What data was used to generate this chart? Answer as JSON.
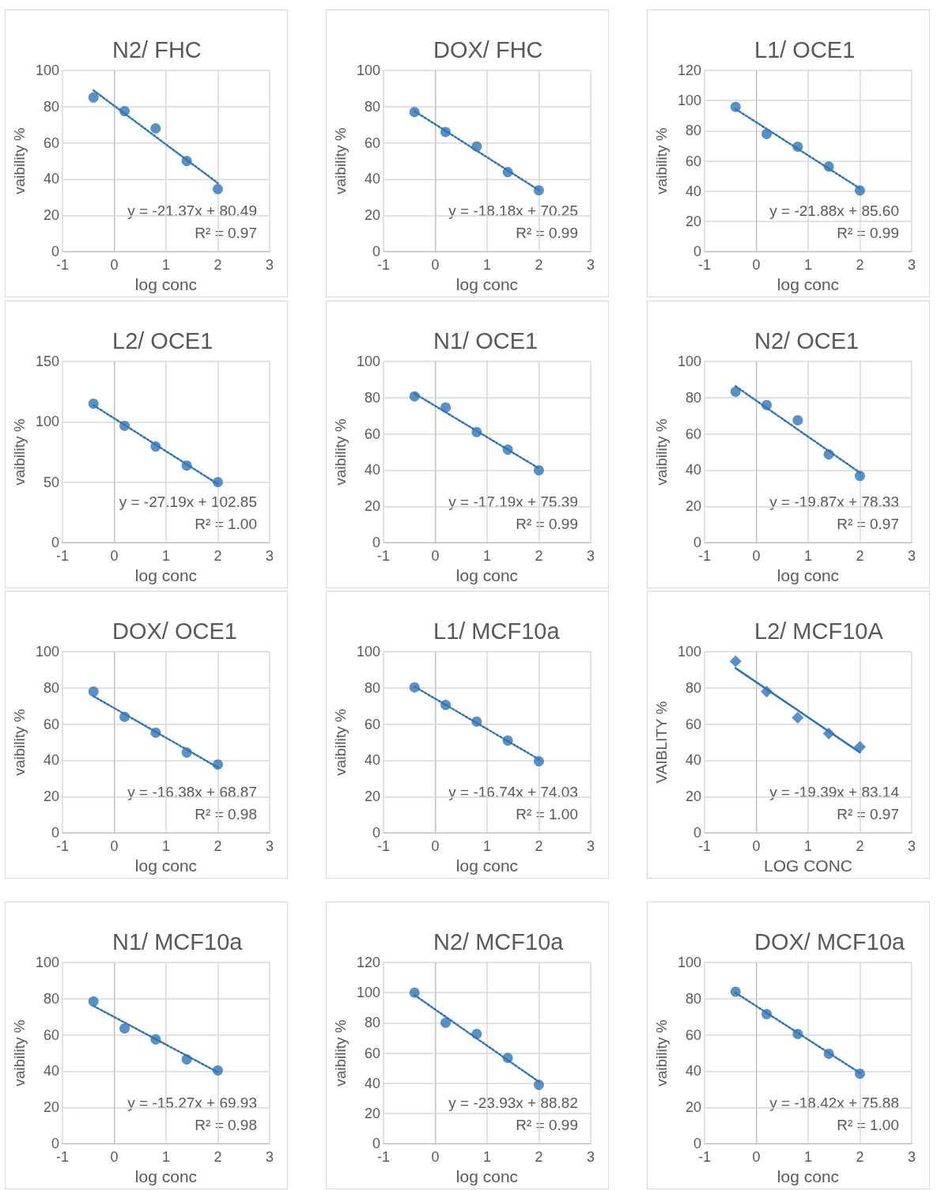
{
  "chart_data": [
    {
      "type": "scatter",
      "title": "N2/ FHC",
      "xlabel": "log conc",
      "ylabel": "vaibility %",
      "xlim": [
        -1,
        3
      ],
      "xticks": [
        -1,
        0,
        1,
        2,
        3
      ],
      "ylim": [
        0,
        100
      ],
      "yticks": [
        0,
        20,
        40,
        60,
        80,
        100
      ],
      "grid": true,
      "annotations": [
        "y = -21.37x + 80.49",
        "R² = 0.97"
      ],
      "series": [
        {
          "marker": "circle",
          "color": "#2e75b6",
          "x": [
            -0.4,
            0.2,
            0.8,
            1.4,
            2
          ],
          "values": [
            85,
            77.5,
            68,
            50,
            34.5
          ]
        },
        {
          "type": "line",
          "marker": "none",
          "color": "#2e75b6",
          "line_style": "dotted",
          "x": [
            -0.4,
            2
          ],
          "values": [
            89,
            37.8
          ]
        }
      ]
    },
    {
      "type": "scatter",
      "title": "DOX/ FHC",
      "xlabel": "log conc",
      "ylabel": "vaibility %",
      "xlim": [
        -1,
        3
      ],
      "xticks": [
        -1,
        0,
        1,
        2,
        3
      ],
      "ylim": [
        0,
        100
      ],
      "yticks": [
        0,
        20,
        40,
        60,
        80,
        100
      ],
      "grid": true,
      "annotations": [
        "y = -18.18x + 70.25",
        "R² = 0.99"
      ],
      "series": [
        {
          "marker": "circle",
          "color": "#2e75b6",
          "x": [
            -0.4,
            0.2,
            0.8,
            1.4,
            2
          ],
          "values": [
            77,
            66,
            58,
            43.9,
            33.8
          ]
        },
        {
          "type": "line",
          "marker": "none",
          "color": "#2e75b6",
          "line_style": "dotted",
          "x": [
            -0.4,
            2
          ],
          "values": [
            77.5,
            33.9
          ]
        }
      ]
    },
    {
      "type": "scatter",
      "title": "L1/ OCE1",
      "xlabel": "log conc",
      "ylabel": "vaibility %",
      "xlim": [
        -1,
        3
      ],
      "xticks": [
        -1,
        0,
        1,
        2,
        3
      ],
      "ylim": [
        0,
        120
      ],
      "yticks": [
        0,
        20,
        40,
        60,
        80,
        100,
        120
      ],
      "grid": true,
      "annotations": [
        "y = -21.88x + 85.60",
        "R² = 0.99"
      ],
      "series": [
        {
          "marker": "circle",
          "color": "#2e75b6",
          "x": [
            -0.4,
            0.2,
            0.8,
            1.4,
            2
          ],
          "values": [
            95.8,
            77.9,
            69.5,
            56.3,
            40.5
          ]
        },
        {
          "type": "line",
          "marker": "none",
          "color": "#2e75b6",
          "line_style": "dotted",
          "x": [
            -0.4,
            2
          ],
          "values": [
            94.4,
            41.8
          ]
        }
      ]
    },
    {
      "type": "scatter",
      "title": "L2/ OCE1",
      "xlabel": "log conc",
      "ylabel": "vaibility %",
      "xlim": [
        -1,
        3
      ],
      "xticks": [
        -1,
        0,
        1,
        2,
        3
      ],
      "ylim": [
        0,
        150
      ],
      "yticks": [
        0,
        50,
        100,
        150
      ],
      "grid": true,
      "annotations": [
        "y = -27.19x + 102.85",
        "R² = 1.00"
      ],
      "series": [
        {
          "marker": "circle",
          "color": "#2e75b6",
          "x": [
            -0.4,
            0.2,
            0.8,
            1.4,
            2
          ],
          "values": [
            115,
            96.7,
            79.6,
            63.8,
            50
          ]
        },
        {
          "type": "line",
          "marker": "none",
          "color": "#2e75b6",
          "line_style": "dotted",
          "x": [
            -0.4,
            2
          ],
          "values": [
            113.7,
            48.5
          ]
        }
      ]
    },
    {
      "type": "scatter",
      "title": "N1/ OCE1",
      "xlabel": "log conc",
      "ylabel": "vaibility %",
      "xlim": [
        -1,
        3
      ],
      "xticks": [
        -1,
        0,
        1,
        2,
        3
      ],
      "ylim": [
        0,
        100
      ],
      "yticks": [
        0,
        20,
        40,
        60,
        80,
        100
      ],
      "grid": true,
      "annotations": [
        "y = -17.19x + 75.39",
        "R² = 0.99"
      ],
      "series": [
        {
          "marker": "circle",
          "color": "#2e75b6",
          "x": [
            -0.4,
            0.2,
            0.8,
            1.4,
            2
          ],
          "values": [
            80.7,
            74.6,
            61,
            51.3,
            39.9
          ]
        },
        {
          "type": "line",
          "marker": "none",
          "color": "#2e75b6",
          "line_style": "dotted",
          "x": [
            -0.4,
            2
          ],
          "values": [
            82.3,
            41
          ]
        }
      ]
    },
    {
      "type": "scatter",
      "title": "N2/ OCE1",
      "xlabel": "log conc",
      "ylabel": "vaibility %",
      "xlim": [
        -1,
        3
      ],
      "xticks": [
        -1,
        0,
        1,
        2,
        3
      ],
      "ylim": [
        0,
        100
      ],
      "yticks": [
        0,
        20,
        40,
        60,
        80,
        100
      ],
      "grid": true,
      "annotations": [
        "y = -19.87x + 78.33",
        "R² = 0.97"
      ],
      "series": [
        {
          "marker": "circle",
          "color": "#2e75b6",
          "x": [
            -0.4,
            0.2,
            0.8,
            1.4,
            2
          ],
          "values": [
            83.3,
            75.9,
            67.5,
            48.7,
            36.8
          ]
        },
        {
          "type": "line",
          "marker": "none",
          "color": "#2e75b6",
          "line_style": "dotted",
          "x": [
            -0.4,
            2
          ],
          "values": [
            86.3,
            38.6
          ]
        }
      ]
    },
    {
      "type": "scatter",
      "title": "DOX/ OCE1",
      "xlabel": "log conc",
      "ylabel": "vaibility %",
      "xlim": [
        -1,
        3
      ],
      "xticks": [
        -1,
        0,
        1,
        2,
        3
      ],
      "ylim": [
        0,
        100
      ],
      "yticks": [
        0,
        20,
        40,
        60,
        80,
        100
      ],
      "grid": true,
      "annotations": [
        "y = -16.38x + 68.87",
        "R² = 0.98"
      ],
      "series": [
        {
          "marker": "circle",
          "color": "#2e75b6",
          "x": [
            -0.4,
            0.2,
            0.8,
            1.4,
            2
          ],
          "values": [
            78,
            64,
            55.3,
            44.3,
            37.7
          ]
        },
        {
          "type": "line",
          "marker": "none",
          "color": "#2e75b6",
          "line_style": "dotted",
          "x": [
            -0.4,
            2
          ],
          "values": [
            75.4,
            36.1
          ]
        }
      ]
    },
    {
      "type": "scatter",
      "title": "L1/ MCF10a",
      "xlabel": "log conc",
      "ylabel": "vaibility %",
      "xlim": [
        -1,
        3
      ],
      "xticks": [
        -1,
        0,
        1,
        2,
        3
      ],
      "ylim": [
        0,
        100
      ],
      "yticks": [
        0,
        20,
        40,
        60,
        80,
        100
      ],
      "grid": true,
      "annotations": [
        "y = -16.74x + 74.03",
        "R² = 1.00"
      ],
      "series": [
        {
          "marker": "circle",
          "color": "#2e75b6",
          "x": [
            -0.4,
            0.2,
            0.8,
            1.4,
            2
          ],
          "values": [
            80.3,
            70.6,
            61.4,
            50.9,
            39.5
          ]
        },
        {
          "type": "line",
          "marker": "none",
          "color": "#2e75b6",
          "line_style": "dotted",
          "x": [
            -0.4,
            2
          ],
          "values": [
            80.7,
            40.6
          ]
        }
      ]
    },
    {
      "type": "scatter",
      "title": "L2/ MCF10A",
      "xlabel": "LOG CONC",
      "ylabel": "VAIBLITY %",
      "xlim": [
        -1,
        3
      ],
      "xticks": [
        -1,
        0,
        1,
        2,
        3
      ],
      "ylim": [
        0,
        100
      ],
      "yticks": [
        0,
        20,
        40,
        60,
        80,
        100
      ],
      "grid": true,
      "annotations": [
        "y = -19.39x + 83.14",
        "R² = 0.97"
      ],
      "series": [
        {
          "marker": "diamond",
          "color": "#2e75b6",
          "x": [
            -0.4,
            0.2,
            0.8,
            1.4,
            2
          ],
          "values": [
            94.7,
            78,
            63.6,
            54.8,
            47.4
          ]
        },
        {
          "type": "line",
          "marker": "none",
          "color": "#2e75b6",
          "line_style": "solid",
          "x": [
            -0.4,
            2
          ],
          "values": [
            90.9,
            44.4
          ]
        }
      ]
    },
    {
      "type": "scatter",
      "title": "N1/ MCF10a",
      "xlabel": "log conc",
      "ylabel": "vaibility %",
      "xlim": [
        -1,
        3
      ],
      "xticks": [
        -1,
        0,
        1,
        2,
        3
      ],
      "ylim": [
        0,
        100
      ],
      "yticks": [
        0,
        20,
        40,
        60,
        80,
        100
      ],
      "grid": true,
      "annotations": [
        "y = -15.27x + 69.93",
        "R² = 0.98"
      ],
      "series": [
        {
          "marker": "circle",
          "color": "#2e75b6",
          "x": [
            -0.4,
            0.2,
            0.8,
            1.4,
            2
          ],
          "values": [
            78.5,
            63.6,
            57.5,
            46.5,
            40.4
          ]
        },
        {
          "type": "line",
          "marker": "none",
          "color": "#2e75b6",
          "line_style": "dotted",
          "x": [
            -0.4,
            2
          ],
          "values": [
            76,
            39.4
          ]
        }
      ]
    },
    {
      "type": "scatter",
      "title": "N2/ MCF10a",
      "xlabel": "log conc",
      "ylabel": "vaibility %",
      "xlim": [
        -1,
        3
      ],
      "xticks": [
        -1,
        0,
        1,
        2,
        3
      ],
      "ylim": [
        0,
        120
      ],
      "yticks": [
        0,
        20,
        40,
        60,
        80,
        100,
        120
      ],
      "grid": true,
      "annotations": [
        "y = -23.93x + 88.82",
        "R² = 0.99"
      ],
      "series": [
        {
          "marker": "circle",
          "color": "#2e75b6",
          "x": [
            -0.4,
            0.2,
            0.8,
            1.4,
            2
          ],
          "values": [
            100,
            80,
            72.6,
            56.8,
            38.9
          ]
        },
        {
          "type": "line",
          "marker": "none",
          "color": "#2e75b6",
          "line_style": "dotted",
          "x": [
            -0.4,
            2
          ],
          "values": [
            98.4,
            41
          ]
        }
      ]
    },
    {
      "type": "scatter",
      "title": "DOX/ MCF10a",
      "xlabel": "log conc",
      "ylabel": "vaibility %",
      "xlim": [
        -1,
        3
      ],
      "xticks": [
        -1,
        0,
        1,
        2,
        3
      ],
      "ylim": [
        0,
        100
      ],
      "yticks": [
        0,
        20,
        40,
        60,
        80,
        100
      ],
      "grid": true,
      "annotations": [
        "y = -18.42x + 75.88",
        "R² = 1.00"
      ],
      "series": [
        {
          "marker": "circle",
          "color": "#2e75b6",
          "x": [
            -0.4,
            0.2,
            0.8,
            1.4,
            2
          ],
          "values": [
            83.8,
            71.5,
            60.5,
            49.6,
            38.6
          ]
        },
        {
          "type": "line",
          "marker": "none",
          "color": "#2e75b6",
          "line_style": "dotted",
          "x": [
            -0.4,
            2
          ],
          "values": [
            83.3,
            39
          ]
        }
      ]
    }
  ]
}
